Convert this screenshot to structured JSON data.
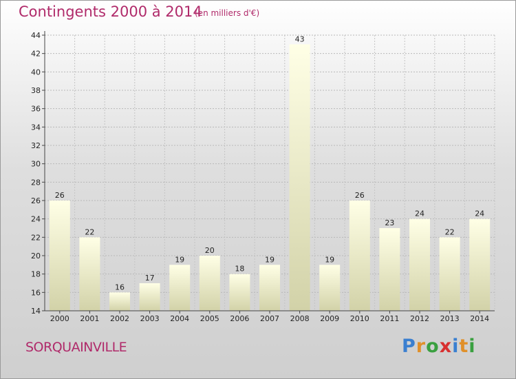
{
  "header": {
    "title": "Contingents 2000 à 2014",
    "subtitle": "(en milliers d'€)"
  },
  "footer": {
    "commune": "SORQUAINVILLE",
    "logo": "Proxiti",
    "logo_colors": [
      "#3a7fd0",
      "#e0902a",
      "#3aa040",
      "#d83030",
      "#3a7fd0",
      "#e0902a",
      "#3aa040"
    ]
  },
  "chart_data": {
    "type": "bar",
    "categories": [
      "2000",
      "2001",
      "2002",
      "2003",
      "2004",
      "2005",
      "2006",
      "2007",
      "2008",
      "2009",
      "2010",
      "2011",
      "2012",
      "2013",
      "2014"
    ],
    "values": [
      26,
      22,
      16,
      17,
      19,
      20,
      18,
      19,
      43,
      19,
      26,
      23,
      24,
      22,
      24
    ],
    "title": "Contingents 2000 à 2014",
    "subtitle": "(en milliers d'€)",
    "xlabel": "",
    "ylabel": "",
    "ylim": [
      14,
      44
    ],
    "yticks": [
      14,
      16,
      18,
      20,
      22,
      24,
      26,
      28,
      30,
      32,
      34,
      36,
      38,
      40,
      42,
      44
    ],
    "grid": true,
    "legend": "none"
  }
}
